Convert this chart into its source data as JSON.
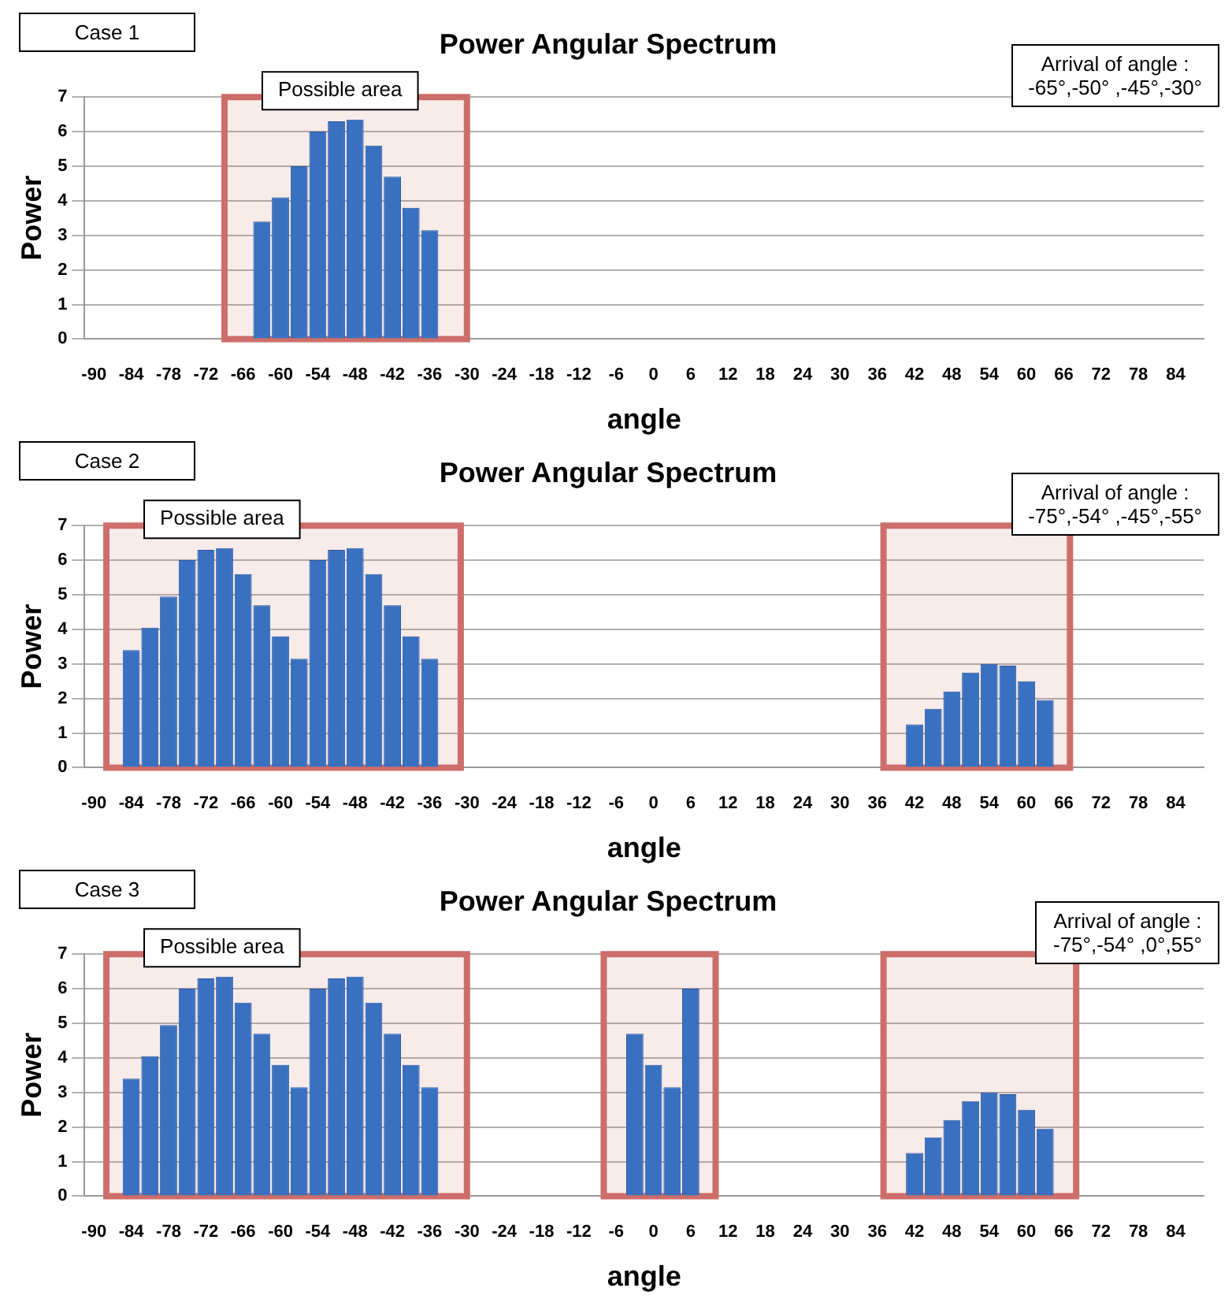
{
  "chart_data": [
    {
      "type": "bar",
      "title": "Power Angular Spectrum",
      "xlabel": "angle",
      "ylabel": "Power",
      "xlim": [
        -91.5,
        88.5
      ],
      "xticks": [
        -90,
        -84,
        -78,
        -72,
        -66,
        -60,
        -54,
        -48,
        -42,
        -36,
        -30,
        -24,
        -18,
        -12,
        -6,
        0,
        6,
        12,
        18,
        24,
        30,
        36,
        42,
        48,
        54,
        60,
        66,
        72,
        78,
        84
      ],
      "ylim": [
        0,
        7
      ],
      "yticks": [
        0,
        1,
        2,
        3,
        4,
        5,
        6,
        7
      ],
      "grid": "y",
      "x": [
        -63,
        -60,
        -57,
        -54,
        -51,
        -48,
        -45,
        -42,
        -39,
        -36
      ],
      "values": [
        3.4,
        4.1,
        5.0,
        6.0,
        6.3,
        6.35,
        5.6,
        4.7,
        3.8,
        3.15
      ],
      "color": "#3a70c0",
      "bands": [
        {
          "axis": "x",
          "from": -69,
          "to": -30,
          "label": "Possible area",
          "color": "#cd6e6a"
        }
      ],
      "annotations": [
        "Case 1",
        "Arrival of angle :\n-65°,-50° ,-45°,-30°"
      ]
    },
    {
      "type": "bar",
      "title": "Power Angular Spectrum",
      "xlabel": "angle",
      "ylabel": "Power",
      "xlim": [
        -91.5,
        88.5
      ],
      "xticks": [
        -90,
        -84,
        -78,
        -72,
        -66,
        -60,
        -54,
        -48,
        -42,
        -36,
        -30,
        -24,
        -18,
        -12,
        -6,
        0,
        6,
        12,
        18,
        24,
        30,
        36,
        42,
        48,
        54,
        60,
        66,
        72,
        78,
        84
      ],
      "ylim": [
        0,
        7
      ],
      "yticks": [
        0,
        1,
        2,
        3,
        4,
        5,
        6,
        7
      ],
      "grid": "y",
      "x": [
        -84,
        -81,
        -78,
        -75,
        -72,
        -69,
        -66,
        -63,
        -60,
        -57,
        -54,
        -51,
        -48,
        -45,
        -42,
        -39,
        -36,
        42,
        45,
        48,
        51,
        54,
        57,
        60,
        63
      ],
      "values": [
        3.4,
        4.05,
        4.95,
        6.0,
        6.3,
        6.35,
        5.6,
        4.7,
        3.8,
        3.15,
        6.0,
        6.3,
        6.35,
        5.6,
        4.7,
        3.8,
        3.15,
        1.25,
        1.7,
        2.2,
        2.75,
        3.0,
        2.95,
        2.5,
        1.95
      ],
      "color": "#3a70c0",
      "bands": [
        {
          "axis": "x",
          "from": -88,
          "to": -31,
          "label": "Possible area",
          "color": "#cd6e6a"
        },
        {
          "axis": "x",
          "from": 37,
          "to": 67,
          "color": "#cd6e6a"
        }
      ],
      "annotations": [
        "Case 2",
        "Arrival of angle :\n-75°,-54° ,-45°,-55°"
      ]
    },
    {
      "type": "bar",
      "title": "Power Angular Spectrum",
      "xlabel": "angle",
      "ylabel": "Power",
      "xlim": [
        -91.5,
        88.5
      ],
      "xticks": [
        -90,
        -84,
        -78,
        -72,
        -66,
        -60,
        -54,
        -48,
        -42,
        -36,
        -30,
        -24,
        -18,
        -12,
        -6,
        0,
        6,
        12,
        18,
        24,
        30,
        36,
        42,
        48,
        54,
        60,
        66,
        72,
        78,
        84
      ],
      "ylim": [
        0,
        7
      ],
      "yticks": [
        0,
        1,
        2,
        3,
        4,
        5,
        6,
        7
      ],
      "grid": "y",
      "x": [
        -84,
        -81,
        -78,
        -75,
        -72,
        -69,
        -66,
        -63,
        -60,
        -57,
        -54,
        -51,
        -48,
        -45,
        -42,
        -39,
        -36,
        -3,
        0,
        3,
        6,
        42,
        45,
        48,
        51,
        54,
        57,
        60,
        63
      ],
      "values": [
        3.4,
        4.05,
        4.95,
        6.0,
        6.3,
        6.35,
        5.6,
        4.7,
        3.8,
        3.15,
        6.0,
        6.3,
        6.35,
        5.6,
        4.7,
        3.8,
        3.15,
        4.7,
        3.8,
        3.15,
        6.0,
        1.25,
        1.7,
        2.2,
        2.75,
        3.0,
        2.95,
        2.5,
        1.95
      ],
      "color": "#3a70c0",
      "bands": [
        {
          "axis": "x",
          "from": -88,
          "to": -30,
          "label": "Possible area",
          "color": "#cd6e6a"
        },
        {
          "axis": "x",
          "from": -8,
          "to": 10,
          "color": "#cd6e6a"
        },
        {
          "axis": "x",
          "from": 37,
          "to": 68,
          "color": "#cd6e6a"
        }
      ],
      "annotations": [
        "Case 3",
        "Arrival of angle :\n-75°,-54° ,0°,55°"
      ]
    }
  ]
}
